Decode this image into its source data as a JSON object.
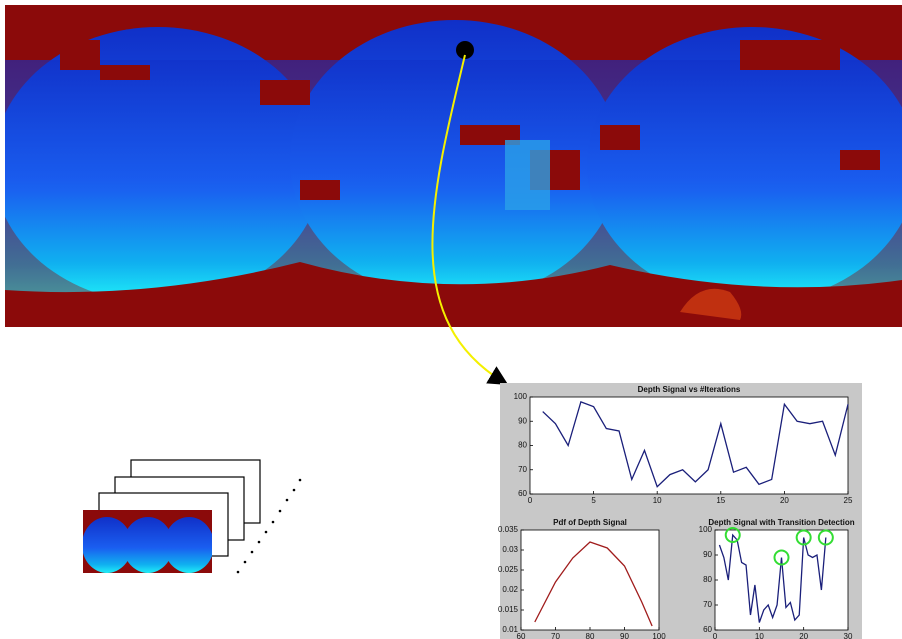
{
  "chart_data": [
    {
      "type": "line",
      "title": "Depth Signal vs #Iterations",
      "x": [
        1,
        2,
        3,
        4,
        5,
        6,
        7,
        8,
        9,
        10,
        11,
        12,
        13,
        14,
        15,
        16,
        17,
        18,
        19,
        20,
        21,
        22,
        23,
        24,
        25
      ],
      "values": [
        94,
        89,
        80,
        98,
        96,
        87,
        86,
        66,
        78,
        63,
        68,
        70,
        65,
        70,
        89,
        69,
        71,
        64,
        66,
        97,
        90,
        89,
        90,
        76,
        97
      ],
      "color": "#1a1f7a",
      "xlim": [
        0,
        25
      ],
      "ylim": [
        60,
        100
      ],
      "xticks": [
        0,
        5,
        10,
        15,
        20,
        25
      ],
      "yticks": [
        60,
        70,
        80,
        90,
        100
      ]
    },
    {
      "type": "line",
      "title": "Pdf of Depth Signal",
      "x": [
        64,
        70,
        75,
        80,
        85,
        90,
        95,
        98
      ],
      "values": [
        0.012,
        0.022,
        0.028,
        0.032,
        0.0305,
        0.026,
        0.017,
        0.011
      ],
      "color": "#a01c1c",
      "xlim": [
        60,
        100
      ],
      "ylim": [
        0.01,
        0.035
      ],
      "xticks": [
        60,
        70,
        80,
        90,
        100
      ],
      "yticks": [
        0.01,
        0.015,
        0.02,
        0.025,
        0.03,
        0.035
      ]
    },
    {
      "type": "line",
      "title": "Depth Signal with Transition Detection",
      "x": [
        1,
        2,
        3,
        4,
        5,
        6,
        7,
        8,
        9,
        10,
        11,
        12,
        13,
        14,
        15,
        16,
        17,
        18,
        19,
        20,
        21,
        22,
        23,
        24,
        25
      ],
      "values": [
        94,
        89,
        80,
        98,
        96,
        87,
        86,
        66,
        78,
        63,
        68,
        70,
        65,
        70,
        89,
        69,
        71,
        64,
        66,
        97,
        90,
        89,
        90,
        76,
        97
      ],
      "color": "#1a1f7a",
      "xlim": [
        0,
        30
      ],
      "ylim": [
        60,
        100
      ],
      "xticks": [
        0,
        10,
        20,
        30
      ],
      "yticks": [
        60,
        70,
        80,
        90,
        100
      ],
      "detections": {
        "x": [
          4,
          15,
          20,
          25
        ],
        "values": [
          98,
          89,
          97,
          97
        ],
        "color": "#33dd33"
      }
    }
  ]
}
